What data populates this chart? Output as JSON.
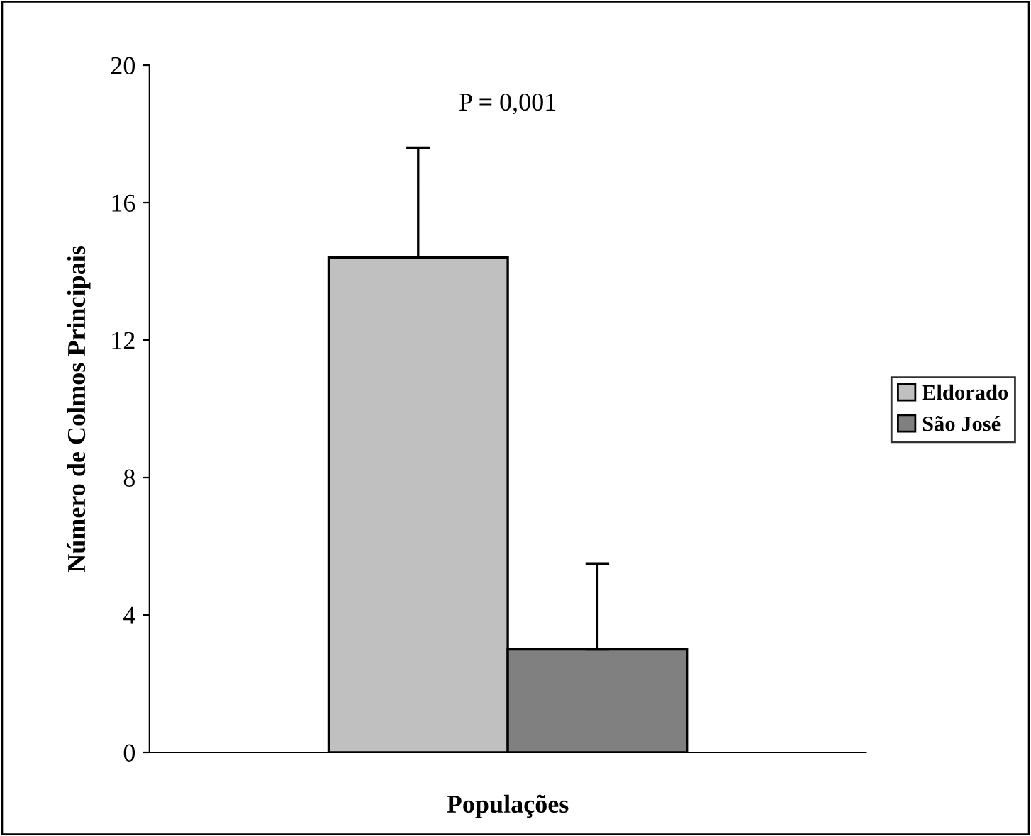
{
  "chart_data": {
    "type": "bar",
    "xlabel": "Populações",
    "ylabel": "Número de Colmos Principais",
    "categories": [
      null
    ],
    "series": [
      {
        "name": "Eldorado",
        "color": "#c0c0c0",
        "values": [
          14.4
        ],
        "errors": [
          [
            14.4,
            17.6
          ]
        ]
      },
      {
        "name": "São José",
        "color": "#808080",
        "values": [
          3.0
        ],
        "errors": [
          [
            3.0,
            5.5
          ]
        ]
      }
    ],
    "ylim": [
      0,
      20
    ],
    "yticks": [
      0,
      4,
      8,
      12,
      16,
      20
    ],
    "annotations": [
      "P = 0,001"
    ],
    "legend": "right",
    "grid": false
  }
}
